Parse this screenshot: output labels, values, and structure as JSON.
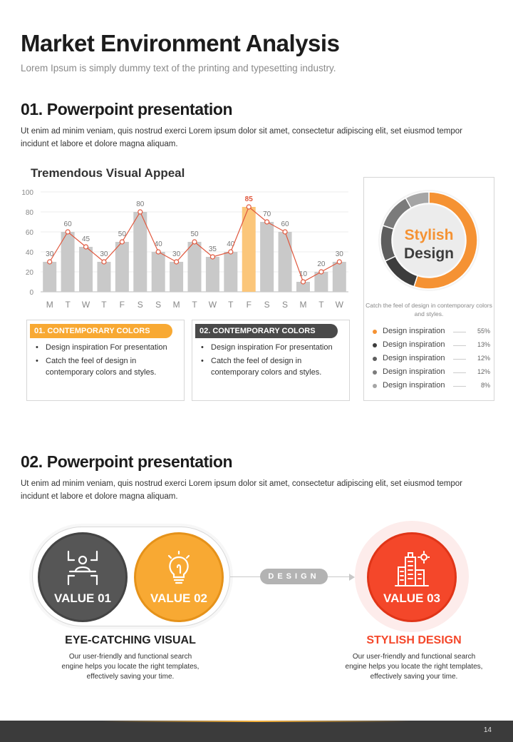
{
  "header": {
    "title": "Market Environment Analysis",
    "subtitle": "Lorem Ipsum is simply dummy text of the printing and typesetting industry."
  },
  "section1": {
    "title": "01. Powerpoint presentation",
    "body": "Ut enim ad minim veniam, quis nostrud exerci  Lorem ipsum dolor sit amet, consectetur adipiscing elit, set eiusmod tempor incidunt et labore et dolore magna aliquam."
  },
  "chart_data": {
    "type": "bar",
    "title": "Tremendous Visual  Appeal",
    "categories": [
      "M",
      "T",
      "W",
      "T",
      "F",
      "S",
      "S",
      "M",
      "T",
      "W",
      "T",
      "F",
      "S",
      "S",
      "M",
      "T",
      "W"
    ],
    "values": [
      30,
      60,
      45,
      30,
      50,
      80,
      40,
      30,
      50,
      35,
      40,
      85,
      70,
      60,
      10,
      20,
      30
    ],
    "highlight_index": 11,
    "overlay": "line",
    "ylim": [
      0,
      100
    ],
    "yticks": [
      0,
      20,
      40,
      60,
      80,
      100
    ],
    "grid": true,
    "colors": {
      "bar": "#c9c9c9",
      "highlight": "#fbc67a",
      "line": "#e0573d",
      "highlight_label": "#e0573d"
    }
  },
  "boxes": [
    {
      "title": "01. CONTEMPORARY COLORS",
      "color": "#f8a933",
      "items": [
        "Design inspiration For presentation",
        "Catch the feel of design in contemporary colors and styles."
      ]
    },
    {
      "title": "02. CONTEMPORARY COLORS",
      "color": "#4a4a4a",
      "items": [
        "Design inspiration For presentation",
        "Catch the feel of design in contemporary colors and styles."
      ]
    }
  ],
  "donut": {
    "title_line1": "Stylish",
    "title_line2": "Design",
    "caption": "Catch the feel of design in contemporary colors and styles.",
    "slices": [
      {
        "label": "Design inspiration",
        "value": 55,
        "pct": "55%",
        "color": "#f59233"
      },
      {
        "label": "Design inspiration",
        "value": 13,
        "pct": "13%",
        "color": "#3d3d3d"
      },
      {
        "label": "Design inspiration",
        "value": 12,
        "pct": "12%",
        "color": "#5e5e5e"
      },
      {
        "label": "Design inspiration",
        "value": 12,
        "pct": "12%",
        "color": "#7b7b7b"
      },
      {
        "label": "Design inspiration",
        "value": 8,
        "pct": "8%",
        "color": "#a5a5a5"
      }
    ]
  },
  "section2": {
    "title": "02. Powerpoint presentation",
    "body": "Ut enim ad minim veniam, quis nostrud exerci  Lorem ipsum dolor sit amet, consectetur adipiscing elit, set eiusmod tempor incidunt et labore et dolore magna aliquam."
  },
  "values": {
    "v1": {
      "label": "VALUE 01",
      "icon": "teamwork-icon",
      "color": "#565656"
    },
    "v2": {
      "label": "VALUE 02",
      "icon": "lightbulb-icon",
      "color": "#f8a933"
    },
    "v3": {
      "label": "VALUE 03",
      "icon": "city-building-icon",
      "color": "#f4472a"
    },
    "pill": "DESIGN",
    "left_title": "EYE-CATCHING VISUAL",
    "left_desc": [
      "Our user-friendly and functional  search",
      "engine helps you locate the right templates,",
      "effectively saving your time."
    ],
    "right_title": "STYLISH DESIGN",
    "right_title_color": "#f4472a",
    "right_desc": [
      "Our user-friendly and functional  search",
      "engine helps you locate the right templates,",
      "effectively saving your time."
    ]
  },
  "footer": {
    "page_number": "14"
  }
}
